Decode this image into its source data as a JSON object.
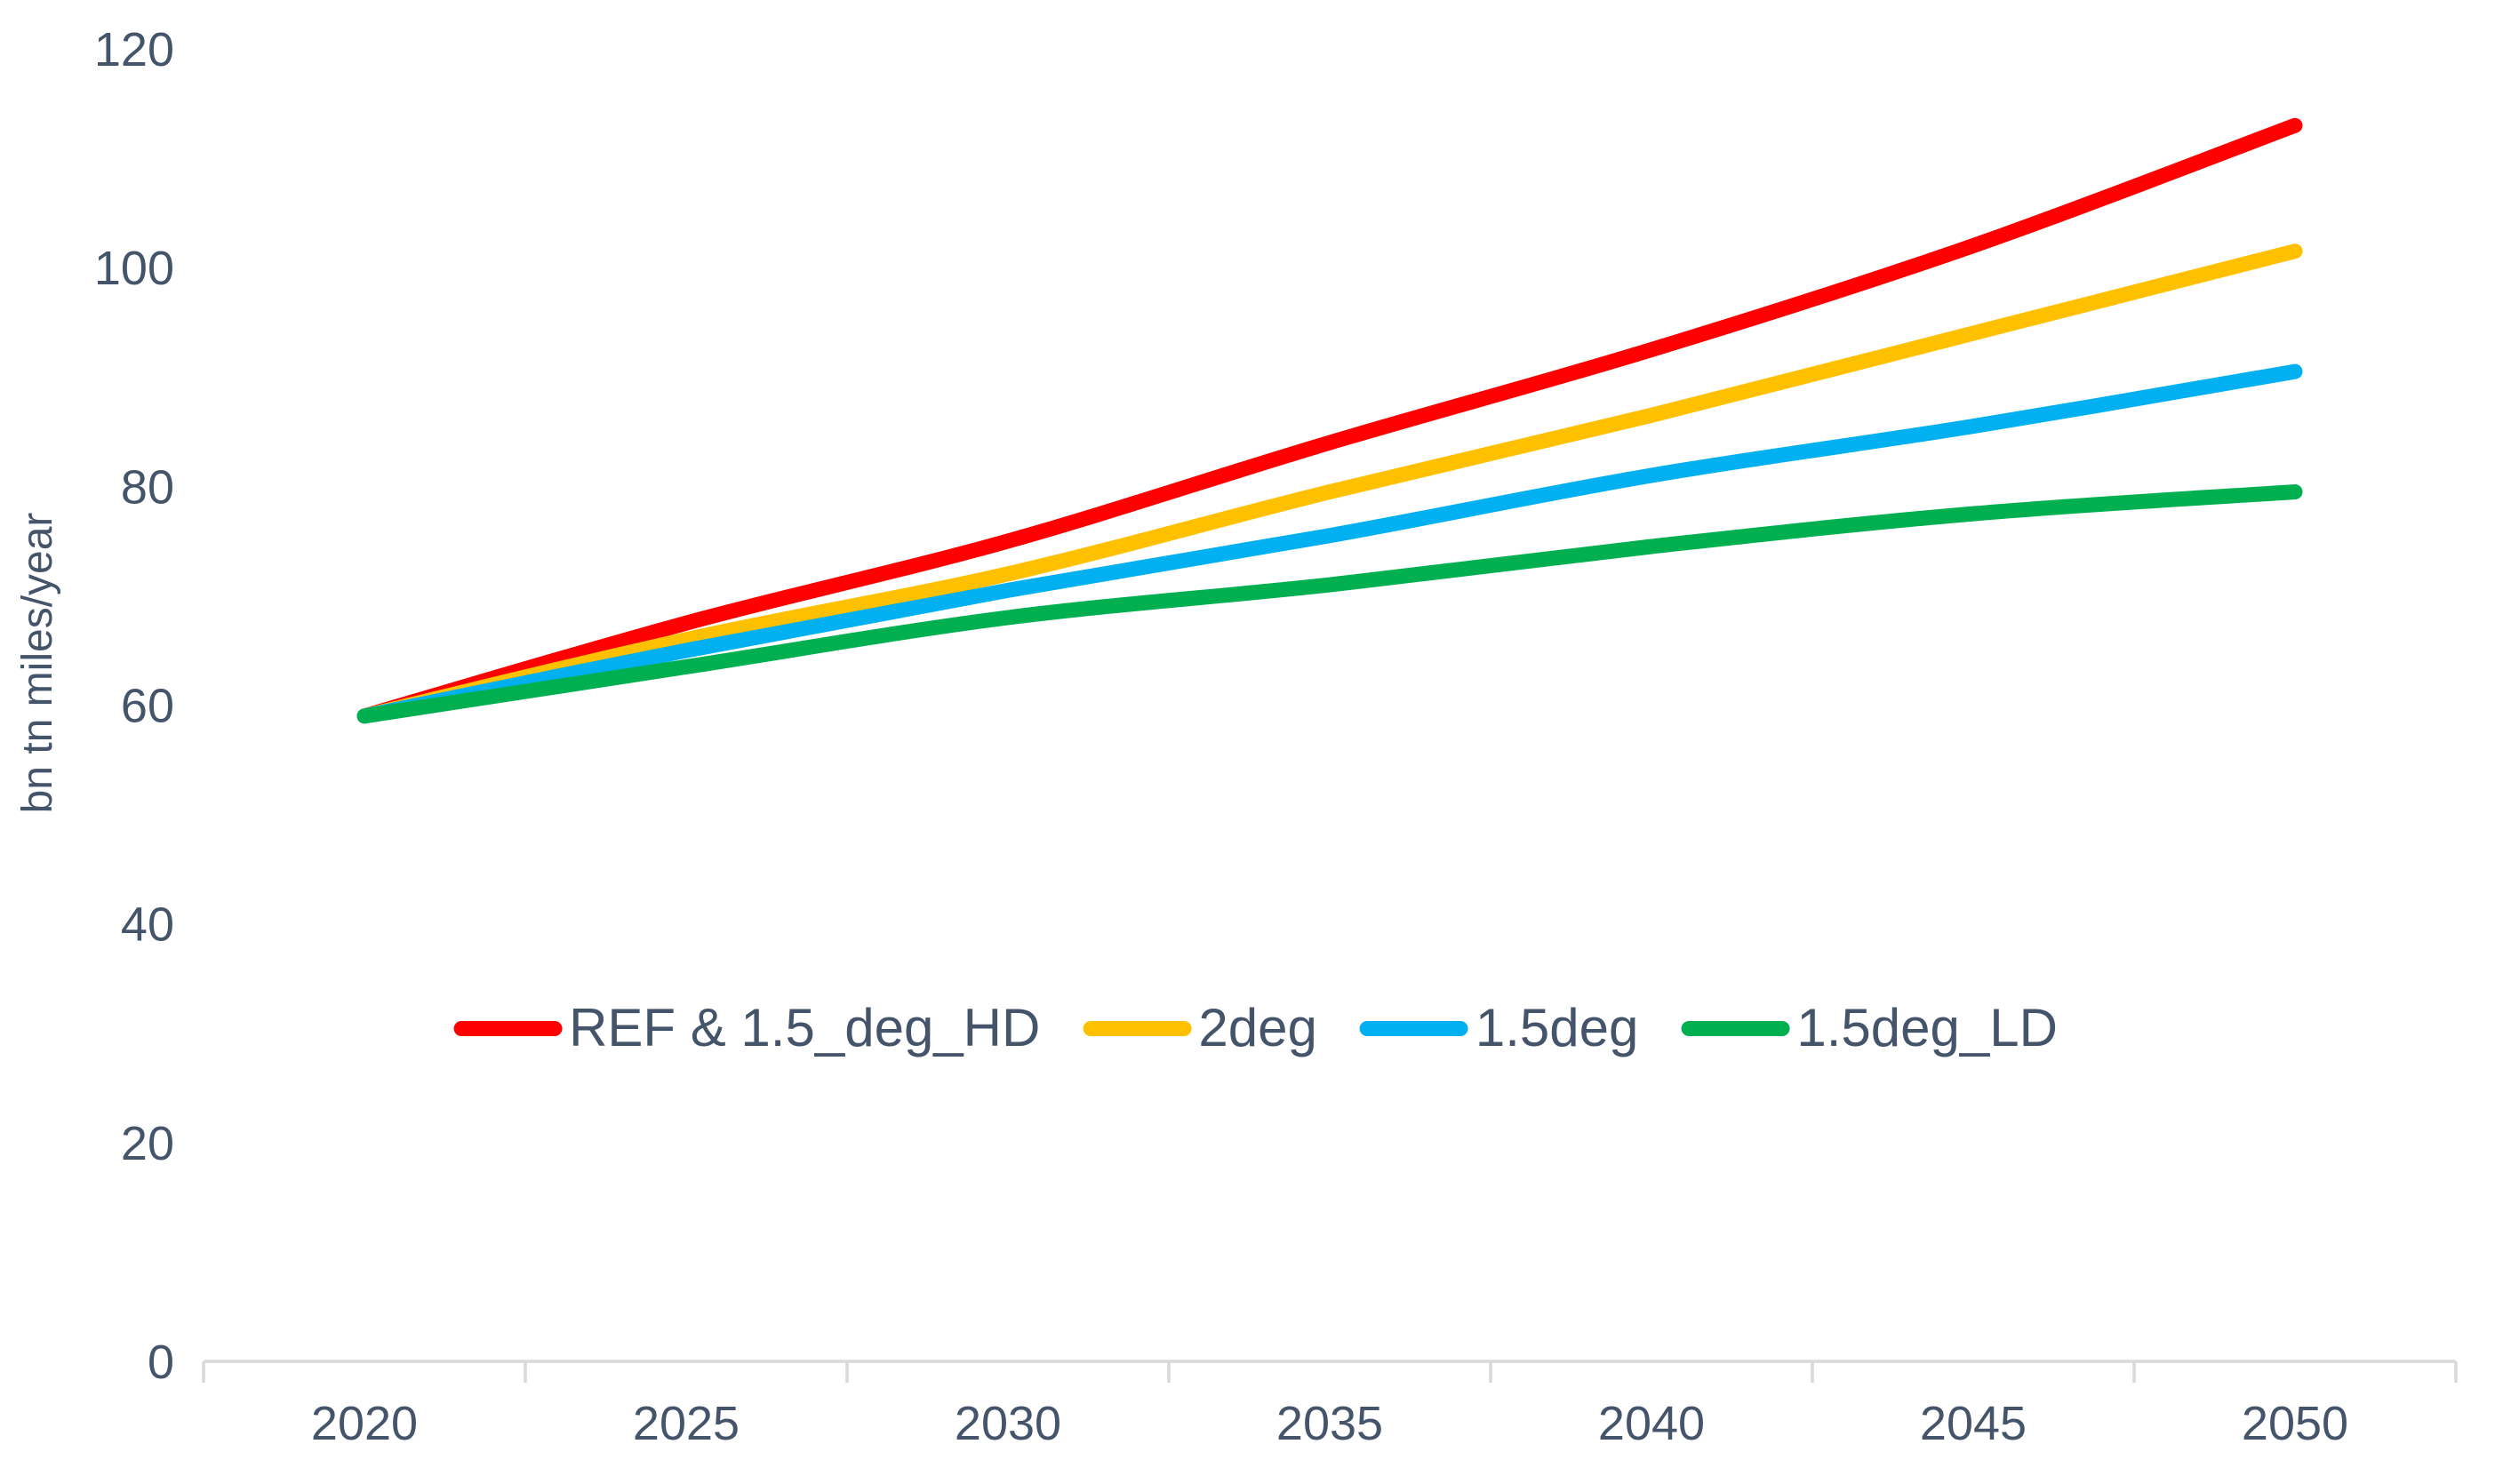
{
  "chart_data": {
    "type": "line",
    "title": "",
    "xlabel": "",
    "ylabel": "bn tn miles/year",
    "x": [
      "2020",
      "2025",
      "2030",
      "2035",
      "2040",
      "2045",
      "2050"
    ],
    "ylim": [
      0,
      120
    ],
    "yticks": [
      0,
      20,
      40,
      60,
      80,
      100,
      120
    ],
    "grid": false,
    "smooth": true,
    "legend_position": "inside-center-middle",
    "series": [
      {
        "name": "REF & 1.5_deg_HD",
        "color": "#FF0000",
        "values": [
          59,
          67.5,
          75,
          84,
          92.5,
          102,
          113
        ]
      },
      {
        "name": "2deg",
        "color": "#FFC000",
        "values": [
          59,
          66,
          72,
          79.5,
          86.5,
          94,
          101.5
        ]
      },
      {
        "name": "1.5deg",
        "color": "#00B0F0",
        "values": [
          59,
          65,
          70.5,
          75.5,
          81,
          85.5,
          90.5
        ]
      },
      {
        "name": "1.5deg_LD",
        "color": "#00B050",
        "values": [
          59,
          63.5,
          68,
          71,
          74.5,
          77.5,
          79.5
        ]
      }
    ]
  },
  "colors": {
    "text": "#44546A",
    "axis_line": "#D9D9D9",
    "background": "#FFFFFF"
  }
}
